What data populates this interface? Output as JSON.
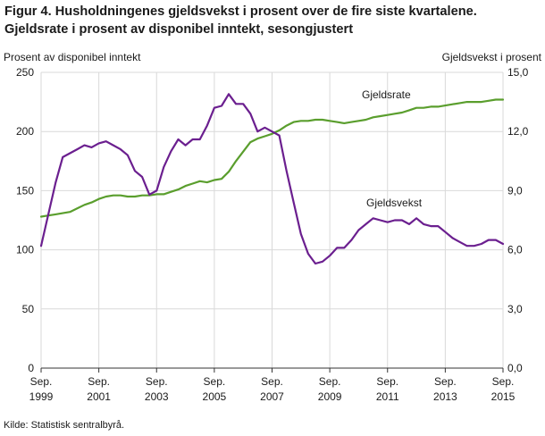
{
  "title_line1": "Figur 4. Husholdningenes gjeldsvekst i prosent over de fire siste kvartalene.",
  "title_line2": "Gjeldsrate i prosent av disponibel inntekt, sesongjustert",
  "source": "Kilde: Statistisk sentralbyrå.",
  "colors": {
    "gjeldsrate": "#5a9e2d",
    "gjeldsvekst": "#6b1f8f",
    "grid": "#d9d9d9",
    "axis": "#333333"
  },
  "chart_data": {
    "type": "line",
    "left_axis": {
      "title": "Prosent  av disponibel  inntekt",
      "min": 0,
      "max": 250,
      "ticks": [
        "0",
        "50",
        "100",
        "150",
        "200",
        "250"
      ]
    },
    "right_axis": {
      "title": "Gjeldsvekst  i prosent",
      "min": 0,
      "max": 15,
      "ticks": [
        "0,0",
        "3,0",
        "6,0",
        "9,0",
        "12,0",
        "15,0"
      ]
    },
    "x_start": "Sep. 1999",
    "x_end": "Sep. 2015",
    "x_ticks": [
      {
        "month": "Sep.",
        "year": "1999"
      },
      {
        "month": "Sep.",
        "year": "2001"
      },
      {
        "month": "Sep.",
        "year": "2003"
      },
      {
        "month": "Sep.",
        "year": "2005"
      },
      {
        "month": "Sep.",
        "year": "2007"
      },
      {
        "month": "Sep.",
        "year": "2009"
      },
      {
        "month": "Sep.",
        "year": "2011"
      },
      {
        "month": "Sep.",
        "year": "2013"
      },
      {
        "month": "Sep.",
        "year": "2015"
      }
    ],
    "grid": true,
    "series": [
      {
        "name": "Gjeldsrate",
        "axis": "left",
        "values": [
          128,
          129,
          130,
          131,
          132,
          135,
          138,
          140,
          143,
          145,
          146,
          146,
          145,
          145,
          146,
          146,
          147,
          147,
          149,
          151,
          154,
          156,
          158,
          157,
          159,
          160,
          166,
          175,
          183,
          191,
          194,
          196,
          198,
          201,
          205,
          208,
          209,
          209,
          210,
          210,
          209,
          208,
          207,
          208,
          209,
          210,
          212,
          213,
          214,
          215,
          216,
          218,
          220,
          220,
          221,
          221,
          222,
          223,
          224,
          225,
          225,
          225,
          226,
          227,
          227
        ]
      },
      {
        "name": "Gjeldsvekst",
        "axis": "right",
        "values": [
          6.2,
          7.8,
          9.4,
          10.7,
          10.9,
          11.1,
          11.3,
          11.2,
          11.4,
          11.5,
          11.3,
          11.1,
          10.8,
          10.0,
          9.7,
          8.8,
          9.0,
          10.2,
          11.0,
          11.6,
          11.3,
          11.6,
          11.6,
          12.3,
          13.2,
          13.3,
          13.9,
          13.4,
          13.4,
          12.9,
          12.0,
          12.2,
          12.0,
          11.8,
          10.0,
          8.4,
          6.8,
          5.8,
          5.3,
          5.4,
          5.7,
          6.1,
          6.1,
          6.5,
          7.0,
          7.3,
          7.6,
          7.5,
          7.4,
          7.5,
          7.5,
          7.3,
          7.6,
          7.3,
          7.2,
          7.2,
          6.9,
          6.6,
          6.4,
          6.2,
          6.2,
          6.3,
          6.5,
          6.5,
          6.3
        ]
      }
    ],
    "annotations": [
      "Gjeldsrate",
      "Gjeldsvekst"
    ]
  }
}
